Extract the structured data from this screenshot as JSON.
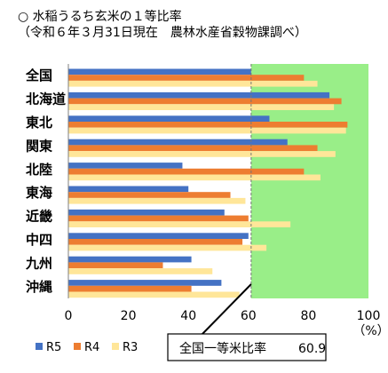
{
  "header": {
    "title_line1": "○ 水稲うるち玄米の１等比率",
    "title_line2": "（令和６年３月31日現在　農林水産省穀物課調べ）"
  },
  "chart_data": {
    "type": "bar",
    "orientation": "horizontal",
    "categories": [
      "全国",
      "北海道",
      "東北",
      "関東",
      "北陸",
      "東海",
      "近畿",
      "中四",
      "九州",
      "沖縄"
    ],
    "series": [
      {
        "name": "R5",
        "color": "#4472C4",
        "values": [
          60.9,
          87.0,
          67.0,
          73.0,
          38.0,
          40.0,
          52.0,
          60.0,
          41.0,
          51.0
        ]
      },
      {
        "name": "R4",
        "color": "#ED7D31",
        "values": [
          78.5,
          91.0,
          93.0,
          83.0,
          78.5,
          54.0,
          60.0,
          58.0,
          31.5,
          41.0
        ]
      },
      {
        "name": "R3",
        "color": "#FFE699",
        "values": [
          83.0,
          88.5,
          92.5,
          89.0,
          84.0,
          59.0,
          74.0,
          66.0,
          48.0,
          57.0
        ]
      }
    ],
    "xlim": [
      0,
      100
    ],
    "xticks": [
      0,
      20,
      40,
      60,
      80,
      100
    ],
    "x_unit": "（%）",
    "highlight_from": 60.9,
    "highlight_to": 100,
    "highlight_color": "#99EE88",
    "legend_position": "bottom-left",
    "annotation": {
      "label": "全国一等米比率",
      "value": "60.9"
    }
  }
}
